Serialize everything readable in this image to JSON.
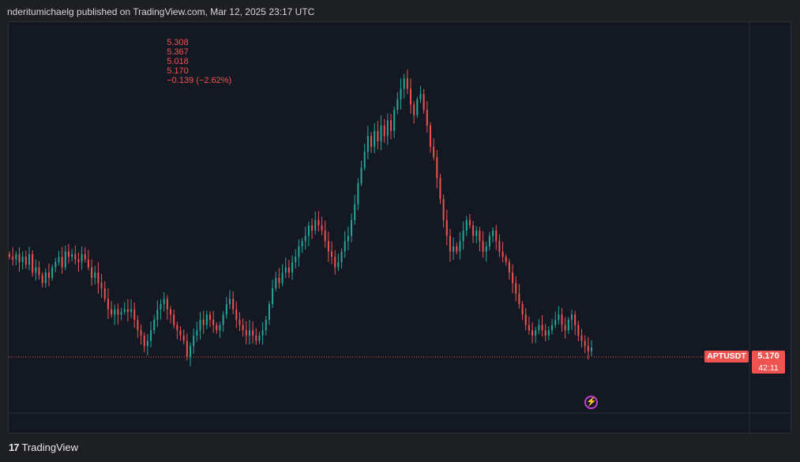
{
  "header": {
    "publish_line": "nderitumichaelg published on TradingView.com, Mar 12, 2025 23:17 UTC"
  },
  "ohlc": {
    "open": "5.308",
    "high": "5.367",
    "low": "5.018",
    "close": "5.170",
    "change": "−0.139 (−2.62%)"
  },
  "price_scale": {
    "symbol": "APTUSDT",
    "last_price": "5.170",
    "countdown": "42:11"
  },
  "footer": {
    "brand": "TradingView",
    "logo_glyph": "17"
  },
  "icons": {
    "alert": "lightning-bolt-icon"
  },
  "colors": {
    "up": "#26a69a",
    "down": "#ef5350",
    "background": "#141823",
    "accent_purple": "#c03ed6"
  },
  "chart_data": {
    "type": "candlestick",
    "symbol": "APTUSDT",
    "y_range": [
      4.3,
      10.8
    ],
    "last_price": 5.17,
    "grid": false,
    "closes": [
      6.9,
      6.85,
      6.95,
      6.8,
      6.9,
      6.75,
      6.95,
      6.6,
      6.7,
      6.55,
      6.4,
      6.6,
      6.5,
      6.7,
      6.8,
      6.9,
      6.7,
      7.0,
      6.9,
      6.95,
      6.85,
      6.8,
      6.95,
      6.85,
      6.7,
      6.5,
      6.6,
      6.4,
      6.3,
      6.1,
      5.9,
      5.8,
      5.9,
      5.8,
      5.85,
      5.9,
      5.85,
      5.9,
      5.7,
      5.5,
      5.4,
      5.2,
      5.3,
      5.5,
      5.7,
      5.9,
      6.0,
      6.1,
      5.9,
      5.8,
      5.6,
      5.5,
      5.4,
      5.3,
      5.0,
      5.2,
      5.4,
      5.5,
      5.7,
      5.6,
      5.8,
      5.7,
      5.6,
      5.5,
      5.6,
      5.8,
      6.0,
      6.1,
      5.9,
      5.7,
      5.6,
      5.5,
      5.4,
      5.5,
      5.4,
      5.3,
      5.4,
      5.5,
      5.7,
      6.0,
      6.3,
      6.5,
      6.4,
      6.6,
      6.7,
      6.6,
      6.8,
      6.9,
      7.1,
      7.2,
      7.3,
      7.5,
      7.4,
      7.6,
      7.5,
      7.4,
      7.2,
      7.0,
      6.9,
      6.7,
      6.8,
      7.0,
      7.2,
      7.3,
      7.6,
      7.9,
      8.3,
      8.6,
      8.9,
      9.2,
      9.0,
      9.3,
      9.1,
      9.4,
      9.2,
      9.5,
      9.3,
      9.7,
      9.9,
      10.1,
      10.3,
      10.1,
      9.8,
      9.6,
      9.9,
      10.0,
      9.7,
      9.4,
      9.0,
      8.8,
      8.4,
      8.0,
      7.6,
      7.3,
      7.0,
      7.1,
      7.0,
      7.2,
      7.4,
      7.6,
      7.5,
      7.3,
      7.4,
      7.2,
      7.0,
      7.1,
      7.3,
      7.4,
      7.2,
      7.0,
      6.9,
      6.8,
      6.6,
      6.4,
      6.2,
      6.0,
      5.8,
      5.6,
      5.5,
      5.4,
      5.5,
      5.6,
      5.5,
      5.4,
      5.5,
      5.6,
      5.7,
      5.8,
      5.6,
      5.5,
      5.7,
      5.8,
      5.6,
      5.4,
      5.3,
      5.2,
      5.1,
      5.17
    ]
  }
}
